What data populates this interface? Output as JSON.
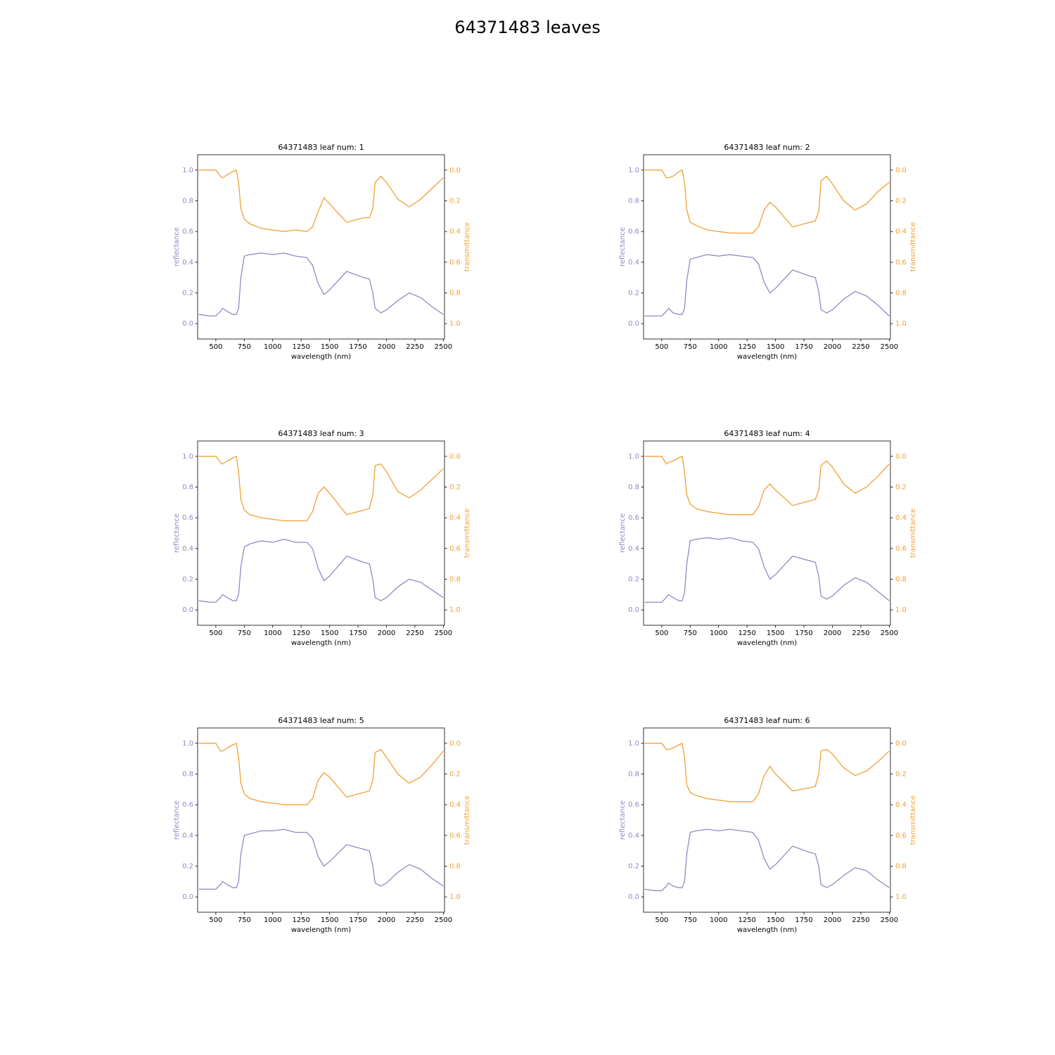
{
  "title": "64371483 leaves",
  "chart_data": [
    {
      "type": "line",
      "title": "64371483 leaf num: 1",
      "xlabel": "wavelength (nm)",
      "ylabel": "reflectance",
      "y2label": "transmittance",
      "x": [
        350,
        450,
        500,
        540,
        560,
        600,
        650,
        680,
        700,
        720,
        750,
        800,
        900,
        1000,
        1100,
        1200,
        1300,
        1350,
        1400,
        1450,
        1500,
        1650,
        1800,
        1850,
        1880,
        1900,
        1950,
        2000,
        2100,
        2200,
        2300,
        2400,
        2500
      ],
      "series": [
        {
          "color": "#8f8ac4",
          "values": [
            0.06,
            0.05,
            0.05,
            0.08,
            0.1,
            0.08,
            0.06,
            0.06,
            0.1,
            0.3,
            0.44,
            0.45,
            0.46,
            0.45,
            0.46,
            0.44,
            0.43,
            0.38,
            0.26,
            0.19,
            0.22,
            0.34,
            0.3,
            0.29,
            0.2,
            0.1,
            0.07,
            0.09,
            0.15,
            0.2,
            0.17,
            0.11,
            0.06
          ]
        },
        {
          "color": "#f0a035",
          "axis": "y2",
          "values": [
            0.0,
            0.0,
            0.0,
            0.04,
            0.05,
            0.03,
            0.01,
            0.0,
            0.08,
            0.25,
            0.32,
            0.35,
            0.38,
            0.39,
            0.4,
            0.39,
            0.4,
            0.37,
            0.27,
            0.18,
            0.22,
            0.34,
            0.31,
            0.31,
            0.25,
            0.08,
            0.04,
            0.08,
            0.19,
            0.24,
            0.19,
            0.12,
            0.05
          ]
        }
      ],
      "xlim": [
        340,
        2510
      ],
      "xticks": [
        500,
        750,
        1000,
        1250,
        1500,
        1750,
        2000,
        2250,
        2500
      ],
      "ylim": [
        -0.1,
        1.1
      ],
      "yticks": [
        {
          "value": 0,
          "label": "0.0"
        },
        0.2,
        0.4,
        0.6,
        0.8,
        {
          "value": 1,
          "label": "1.0"
        }
      ],
      "y2lim": [
        1.1,
        -0.1
      ],
      "y2ticks": [
        {
          "value": 0,
          "label": "0.0"
        },
        0.2,
        0.4,
        0.6,
        0.8,
        {
          "value": 1,
          "label": "1.0"
        }
      ]
    },
    {
      "type": "line",
      "title": "64371483 leaf num: 2",
      "xlabel": "wavelength (nm)",
      "ylabel": "reflectance",
      "y2label": "transmittance",
      "x": [
        350,
        450,
        500,
        540,
        560,
        600,
        650,
        680,
        700,
        720,
        750,
        800,
        900,
        1000,
        1100,
        1200,
        1300,
        1350,
        1400,
        1450,
        1500,
        1650,
        1800,
        1850,
        1880,
        1900,
        1950,
        2000,
        2100,
        2200,
        2300,
        2400,
        2500
      ],
      "series": [
        {
          "color": "#8f8ac4",
          "values": [
            0.05,
            0.05,
            0.05,
            0.08,
            0.1,
            0.07,
            0.06,
            0.06,
            0.1,
            0.28,
            0.42,
            0.43,
            0.45,
            0.44,
            0.45,
            0.44,
            0.43,
            0.39,
            0.27,
            0.2,
            0.23,
            0.35,
            0.31,
            0.3,
            0.21,
            0.09,
            0.07,
            0.09,
            0.16,
            0.21,
            0.18,
            0.12,
            0.05
          ]
        },
        {
          "color": "#f0a035",
          "axis": "y2",
          "values": [
            0.0,
            0.0,
            0.0,
            0.05,
            0.05,
            0.04,
            0.01,
            0.0,
            0.08,
            0.26,
            0.34,
            0.36,
            0.39,
            0.4,
            0.41,
            0.41,
            0.41,
            0.37,
            0.26,
            0.21,
            0.24,
            0.37,
            0.34,
            0.33,
            0.27,
            0.07,
            0.04,
            0.09,
            0.2,
            0.26,
            0.22,
            0.14,
            0.08
          ]
        }
      ],
      "xlim": [
        340,
        2510
      ],
      "xticks": [
        500,
        750,
        1000,
        1250,
        1500,
        1750,
        2000,
        2250,
        2500
      ],
      "ylim": [
        -0.1,
        1.1
      ],
      "yticks": [
        {
          "value": 0,
          "label": "0.0"
        },
        0.2,
        0.4,
        0.6,
        0.8,
        {
          "value": 1,
          "label": "1.0"
        }
      ],
      "y2lim": [
        1.1,
        -0.1
      ],
      "y2ticks": [
        {
          "value": 0,
          "label": "0.0"
        },
        0.2,
        0.4,
        0.6,
        0.8,
        {
          "value": 1,
          "label": "1.0"
        }
      ]
    },
    {
      "type": "line",
      "title": "64371483 leaf num: 3",
      "xlabel": "wavelength (nm)",
      "ylabel": "reflectance",
      "y2label": "transmittance",
      "x": [
        350,
        450,
        500,
        540,
        560,
        600,
        650,
        680,
        700,
        720,
        750,
        800,
        900,
        1000,
        1100,
        1200,
        1300,
        1350,
        1400,
        1450,
        1500,
        1650,
        1800,
        1850,
        1880,
        1900,
        1950,
        2000,
        2100,
        2200,
        2300,
        2400,
        2500
      ],
      "series": [
        {
          "color": "#8f8ac4",
          "values": [
            0.06,
            0.05,
            0.05,
            0.08,
            0.1,
            0.08,
            0.06,
            0.06,
            0.1,
            0.28,
            0.41,
            0.43,
            0.45,
            0.44,
            0.46,
            0.44,
            0.44,
            0.4,
            0.27,
            0.19,
            0.22,
            0.35,
            0.31,
            0.3,
            0.2,
            0.08,
            0.06,
            0.08,
            0.15,
            0.2,
            0.18,
            0.13,
            0.08
          ]
        },
        {
          "color": "#f0a035",
          "axis": "y2",
          "values": [
            0.0,
            0.0,
            0.0,
            0.04,
            0.05,
            0.03,
            0.01,
            0.0,
            0.1,
            0.28,
            0.35,
            0.38,
            0.4,
            0.41,
            0.42,
            0.42,
            0.42,
            0.36,
            0.24,
            0.2,
            0.24,
            0.38,
            0.35,
            0.34,
            0.25,
            0.06,
            0.05,
            0.1,
            0.23,
            0.27,
            0.22,
            0.15,
            0.08
          ]
        }
      ],
      "xlim": [
        340,
        2510
      ],
      "xticks": [
        500,
        750,
        1000,
        1250,
        1500,
        1750,
        2000,
        2250,
        2500
      ],
      "ylim": [
        -0.1,
        1.1
      ],
      "yticks": [
        {
          "value": 0,
          "label": "0.0"
        },
        0.2,
        0.4,
        0.6,
        0.8,
        {
          "value": 1,
          "label": "1.0"
        }
      ],
      "y2lim": [
        1.1,
        -0.1
      ],
      "y2ticks": [
        {
          "value": 0,
          "label": "0.0"
        },
        0.2,
        0.4,
        0.6,
        0.8,
        {
          "value": 1,
          "label": "1.0"
        }
      ]
    },
    {
      "type": "line",
      "title": "64371483 leaf num: 4",
      "xlabel": "wavelength (nm)",
      "ylabel": "reflectance",
      "y2label": "transmittance",
      "x": [
        350,
        450,
        500,
        540,
        560,
        600,
        650,
        680,
        700,
        720,
        750,
        800,
        900,
        1000,
        1100,
        1200,
        1300,
        1350,
        1400,
        1450,
        1500,
        1650,
        1800,
        1850,
        1880,
        1900,
        1950,
        2000,
        2100,
        2200,
        2300,
        2400,
        2500
      ],
      "series": [
        {
          "color": "#8f8ac4",
          "values": [
            0.05,
            0.05,
            0.05,
            0.08,
            0.1,
            0.08,
            0.06,
            0.06,
            0.11,
            0.3,
            0.45,
            0.46,
            0.47,
            0.46,
            0.47,
            0.45,
            0.44,
            0.4,
            0.28,
            0.2,
            0.23,
            0.35,
            0.32,
            0.31,
            0.22,
            0.09,
            0.07,
            0.09,
            0.16,
            0.21,
            0.18,
            0.12,
            0.06
          ]
        },
        {
          "color": "#f0a035",
          "axis": "y2",
          "values": [
            0.0,
            0.0,
            0.0,
            0.05,
            0.04,
            0.03,
            0.01,
            0.0,
            0.1,
            0.25,
            0.31,
            0.34,
            0.36,
            0.37,
            0.38,
            0.38,
            0.38,
            0.33,
            0.22,
            0.18,
            0.22,
            0.32,
            0.29,
            0.28,
            0.22,
            0.06,
            0.03,
            0.07,
            0.18,
            0.24,
            0.2,
            0.13,
            0.05
          ]
        }
      ],
      "xlim": [
        340,
        2510
      ],
      "xticks": [
        500,
        750,
        1000,
        1250,
        1500,
        1750,
        2000,
        2250,
        2500
      ],
      "ylim": [
        -0.1,
        1.1
      ],
      "yticks": [
        {
          "value": 0,
          "label": "0.0"
        },
        0.2,
        0.4,
        0.6,
        0.8,
        {
          "value": 1,
          "label": "1.0"
        }
      ],
      "y2lim": [
        1.1,
        -0.1
      ],
      "y2ticks": [
        {
          "value": 0,
          "label": "0.0"
        },
        0.2,
        0.4,
        0.6,
        0.8,
        {
          "value": 1,
          "label": "1.0"
        }
      ]
    },
    {
      "type": "line",
      "title": "64371483 leaf num: 5",
      "xlabel": "wavelength (nm)",
      "ylabel": "reflectance",
      "y2label": "transmittance",
      "x": [
        350,
        450,
        500,
        540,
        560,
        600,
        650,
        680,
        700,
        720,
        750,
        800,
        900,
        1000,
        1100,
        1200,
        1300,
        1350,
        1400,
        1450,
        1500,
        1650,
        1800,
        1850,
        1880,
        1900,
        1950,
        2000,
        2100,
        2200,
        2300,
        2400,
        2500
      ],
      "series": [
        {
          "color": "#8f8ac4",
          "values": [
            0.05,
            0.05,
            0.05,
            0.08,
            0.1,
            0.08,
            0.06,
            0.06,
            0.1,
            0.28,
            0.4,
            0.41,
            0.43,
            0.43,
            0.44,
            0.42,
            0.42,
            0.38,
            0.26,
            0.2,
            0.23,
            0.34,
            0.31,
            0.3,
            0.2,
            0.09,
            0.07,
            0.09,
            0.16,
            0.21,
            0.18,
            0.12,
            0.07
          ]
        },
        {
          "color": "#f0a035",
          "axis": "y2",
          "values": [
            0.0,
            0.0,
            0.0,
            0.05,
            0.05,
            0.03,
            0.01,
            0.0,
            0.09,
            0.26,
            0.33,
            0.36,
            0.38,
            0.39,
            0.4,
            0.4,
            0.4,
            0.36,
            0.24,
            0.19,
            0.22,
            0.35,
            0.32,
            0.31,
            0.24,
            0.06,
            0.04,
            0.09,
            0.2,
            0.26,
            0.22,
            0.14,
            0.05
          ]
        }
      ],
      "xlim": [
        340,
        2510
      ],
      "xticks": [
        500,
        750,
        1000,
        1250,
        1500,
        1750,
        2000,
        2250,
        2500
      ],
      "ylim": [
        -0.1,
        1.1
      ],
      "yticks": [
        {
          "value": 0,
          "label": "0.0"
        },
        0.2,
        0.4,
        0.6,
        0.8,
        {
          "value": 1,
          "label": "1.0"
        }
      ],
      "y2lim": [
        1.1,
        -0.1
      ],
      "y2ticks": [
        {
          "value": 0,
          "label": "0.0"
        },
        0.2,
        0.4,
        0.6,
        0.8,
        {
          "value": 1,
          "label": "1.0"
        }
      ]
    },
    {
      "type": "line",
      "title": "64371483 leaf num: 6",
      "xlabel": "wavelength (nm)",
      "ylabel": "reflectance",
      "y2label": "transmittance",
      "x": [
        350,
        450,
        500,
        540,
        560,
        600,
        650,
        680,
        700,
        720,
        750,
        800,
        900,
        1000,
        1100,
        1200,
        1300,
        1350,
        1400,
        1450,
        1500,
        1650,
        1800,
        1850,
        1880,
        1900,
        1950,
        2000,
        2100,
        2200,
        2300,
        2400,
        2500
      ],
      "series": [
        {
          "color": "#8f8ac4",
          "values": [
            0.05,
            0.04,
            0.04,
            0.07,
            0.09,
            0.07,
            0.06,
            0.06,
            0.1,
            0.28,
            0.42,
            0.43,
            0.44,
            0.43,
            0.44,
            0.43,
            0.42,
            0.37,
            0.25,
            0.18,
            0.21,
            0.33,
            0.29,
            0.28,
            0.2,
            0.08,
            0.06,
            0.08,
            0.14,
            0.19,
            0.17,
            0.11,
            0.06
          ]
        },
        {
          "color": "#f0a035",
          "axis": "y2",
          "values": [
            0.0,
            0.0,
            0.0,
            0.04,
            0.04,
            0.03,
            0.01,
            0.0,
            0.09,
            0.27,
            0.32,
            0.34,
            0.36,
            0.37,
            0.38,
            0.38,
            0.38,
            0.33,
            0.21,
            0.15,
            0.2,
            0.31,
            0.29,
            0.28,
            0.2,
            0.05,
            0.04,
            0.07,
            0.16,
            0.21,
            0.18,
            0.12,
            0.05
          ]
        }
      ],
      "xlim": [
        340,
        2510
      ],
      "xticks": [
        500,
        750,
        1000,
        1250,
        1500,
        1750,
        2000,
        2250,
        2500
      ],
      "ylim": [
        -0.1,
        1.1
      ],
      "yticks": [
        {
          "value": 0,
          "label": "0.0"
        },
        0.2,
        0.4,
        0.6,
        0.8,
        {
          "value": 1,
          "label": "1.0"
        }
      ],
      "y2lim": [
        1.1,
        -0.1
      ],
      "y2ticks": [
        {
          "value": 0,
          "label": "0.0"
        },
        0.2,
        0.4,
        0.6,
        0.8,
        {
          "value": 1,
          "label": "1.0"
        }
      ]
    }
  ]
}
